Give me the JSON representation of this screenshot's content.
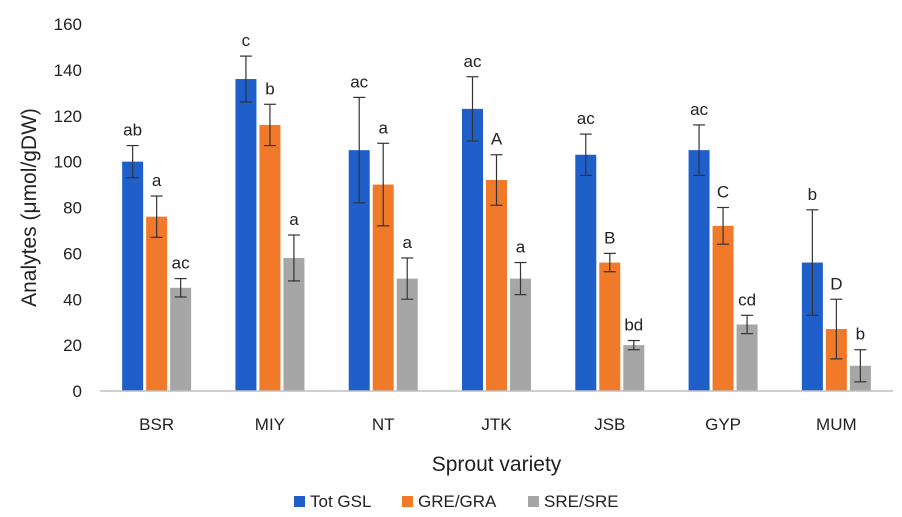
{
  "chart_data": {
    "type": "bar",
    "title": "",
    "xlabel": "Sprout variety",
    "ylabel": "Analytes (μmol/gDW)",
    "ylim": [
      0,
      160
    ],
    "yticks": [
      0,
      20,
      40,
      60,
      80,
      100,
      120,
      140,
      160
    ],
    "grid": false,
    "legend_position": "bottom",
    "categories": [
      "BSR",
      "MIY",
      "NT",
      "JTK",
      "JSB",
      "GYP",
      "MUM"
    ],
    "series": [
      {
        "name": "Tot GSL",
        "color": "#1f5fc9",
        "values": [
          100,
          136,
          105,
          123,
          103,
          105,
          56
        ],
        "errors": [
          7,
          10,
          23,
          14,
          9,
          11,
          23
        ],
        "labels": [
          "ab",
          "c",
          "ac",
          "ac",
          "ac",
          "ac",
          "b"
        ]
      },
      {
        "name": "GRE/GRA",
        "color": "#f07a2a",
        "values": [
          76,
          116,
          90,
          92,
          56,
          72,
          27
        ],
        "errors": [
          9,
          9,
          18,
          11,
          4,
          8,
          13
        ],
        "labels": [
          "a",
          "b",
          "a",
          "A",
          "B",
          "C",
          "D"
        ]
      },
      {
        "name": "SRE/SRE",
        "color": "#a6a6a6",
        "values": [
          45,
          58,
          49,
          49,
          20,
          29,
          11
        ],
        "errors": [
          4,
          10,
          9,
          7,
          2,
          4,
          7
        ],
        "labels": [
          "ac",
          "a",
          "a",
          "a",
          "bd",
          "cd",
          "b"
        ]
      }
    ]
  }
}
